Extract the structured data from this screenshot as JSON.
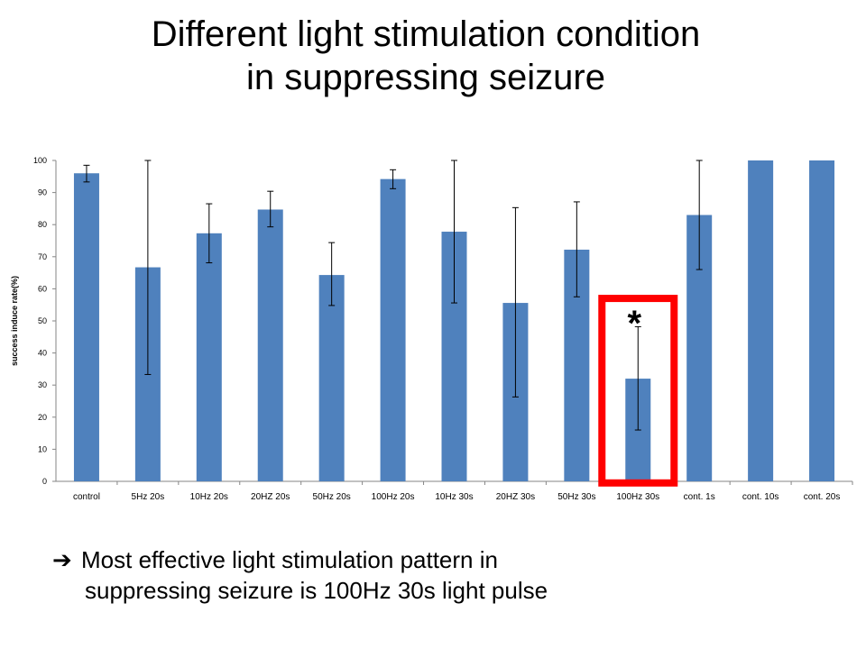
{
  "slide": {
    "title_line1": "Different light stimulation condition",
    "title_line2": "in suppressing seizure",
    "conclusion_arrow": "➔",
    "conclusion_line1": "Most effective light stimulation pattern in",
    "conclusion_line2": "suppressing seizure is 100Hz 30s  light pulse"
  },
  "chart_data": {
    "type": "bar",
    "title": "",
    "xlabel": "",
    "ylabel": "success induce rate(%)",
    "ylim": [
      0,
      100
    ],
    "yticks": [
      0,
      10,
      20,
      30,
      40,
      50,
      60,
      70,
      80,
      90,
      100
    ],
    "grid": false,
    "legend": "none",
    "categories": [
      "control",
      "5Hz 20s",
      "10Hz 20s",
      "20HZ 20s",
      "50Hz 20s",
      "100Hz 20s",
      "10Hz 30s",
      "20HZ 30s",
      "50Hz 30s",
      "100Hz 30s",
      "cont. 1s",
      "cont. 10s",
      "cont. 20s"
    ],
    "values": [
      96,
      66.7,
      77.3,
      84.7,
      64.3,
      94.2,
      77.8,
      55.6,
      72.2,
      32,
      83,
      100,
      100
    ],
    "error_low": [
      93.3,
      33.3,
      68.1,
      79.3,
      54.8,
      91.2,
      55.6,
      26.3,
      57.5,
      16,
      66,
      null,
      null
    ],
    "error_high": [
      98.5,
      100,
      86.5,
      90.4,
      74.4,
      97.1,
      100,
      85.3,
      87.1,
      48.2,
      100,
      null,
      null
    ],
    "bar_color": "#4f81bd",
    "highlight": {
      "category": "100Hz 30s",
      "label": "*",
      "color": "#ff0000"
    }
  }
}
